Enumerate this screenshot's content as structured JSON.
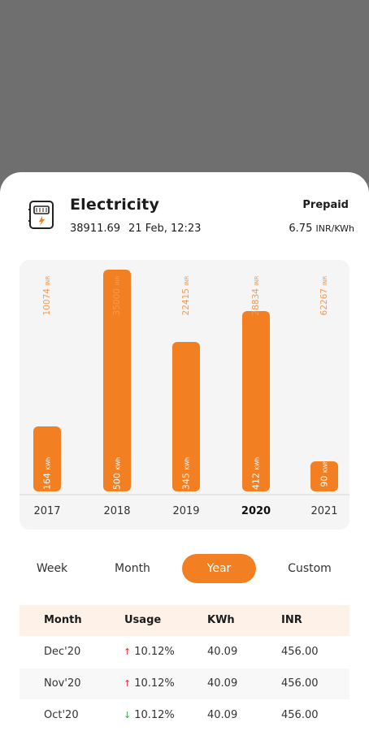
{
  "header": {
    "title": "Electricity",
    "reading": "38911.69",
    "timestamp": "21 Feb, 12:23",
    "mode": "Prepaid",
    "rate_value": "6.75",
    "rate_unit": "INR/KWh",
    "icon": "electric-meter-icon"
  },
  "chart_data": {
    "type": "bar",
    "categories": [
      "2017",
      "2018",
      "2019",
      "2020",
      "2021"
    ],
    "values": [
      164,
      500,
      345,
      412,
      90
    ],
    "value_unit": "KWh",
    "top_labels": [
      "10074",
      "35000",
      "22415",
      "28834",
      "62267"
    ],
    "top_unit": "INR",
    "selected_category": "2020",
    "color": "#f37f23"
  },
  "tabs": [
    {
      "label": "Week"
    },
    {
      "label": "Month"
    },
    {
      "label": "Year",
      "active": true
    },
    {
      "label": "Custom"
    }
  ],
  "table": {
    "headers": [
      "Month",
      "Usage",
      "KWh",
      "INR"
    ],
    "rows": [
      {
        "month": "Dec'20",
        "trend": "up",
        "usage": "10.12%",
        "kwh": "40.09",
        "inr": "456.00"
      },
      {
        "month": "Nov'20",
        "trend": "up",
        "usage": "10.12%",
        "kwh": "40.09",
        "inr": "456.00"
      },
      {
        "month": "Oct'20",
        "trend": "down",
        "usage": "10.12%",
        "kwh": "40.09",
        "inr": "456.00"
      }
    ]
  },
  "colors": {
    "accent": "#f37f23",
    "up": "#e03131",
    "down": "#2fb344"
  }
}
